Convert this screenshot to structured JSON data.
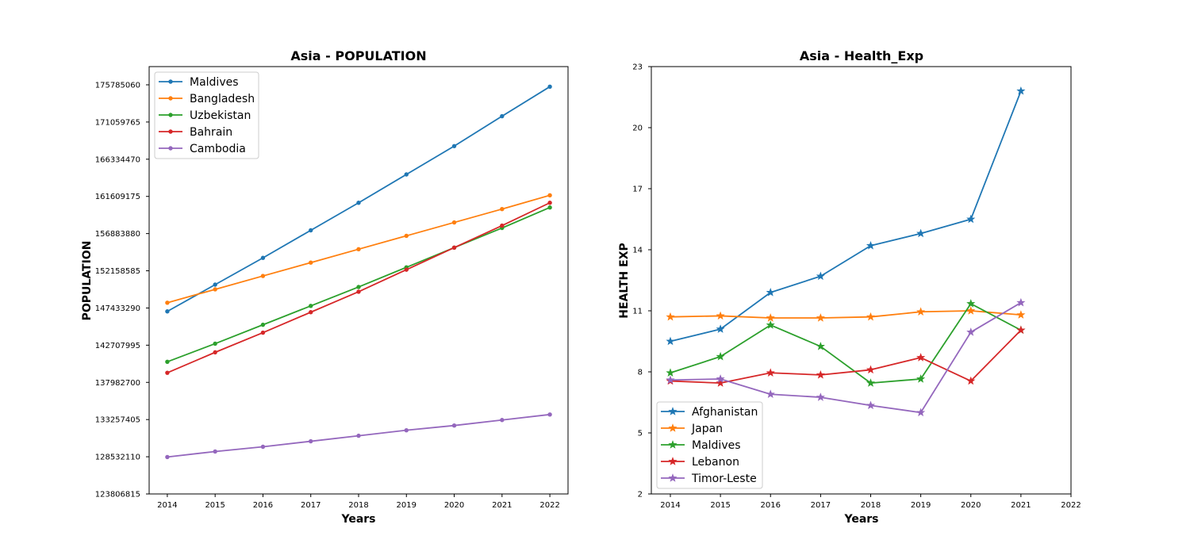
{
  "chart_data": [
    {
      "type": "line",
      "title": "Asia - POPULATION",
      "xlabel": "Years",
      "ylabel": "POPULATION",
      "x": [
        2014,
        2015,
        2016,
        2017,
        2018,
        2019,
        2020,
        2021,
        2022
      ],
      "x_ticks": [
        "2014",
        "2015",
        "2016",
        "2017",
        "2018",
        "2019",
        "2020",
        "2021",
        "2022"
      ],
      "xlim": [
        2013.62,
        2022.38
      ],
      "ylim": [
        123806815,
        178100000
      ],
      "y_ticks": [
        "123806815",
        "128532110",
        "133257405",
        "137982700",
        "142707995",
        "147433290",
        "152158585",
        "156883880",
        "161609175",
        "166334470",
        "171059765",
        "175785060"
      ],
      "y_tick_values": [
        123806815,
        128532110,
        133257405,
        137982700,
        142707995,
        147433290,
        152158585,
        156883880,
        161609175,
        166334470,
        171059765,
        175785060
      ],
      "marker": "circle",
      "grid": false,
      "legend_position": "upper-left",
      "series": [
        {
          "name": "Maldives",
          "color": "#1f77b4",
          "values": [
            147000000,
            150400000,
            153800000,
            157300000,
            160800000,
            164400000,
            168000000,
            171800000,
            175550000
          ]
        },
        {
          "name": "Bangladesh",
          "color": "#ff7f0e",
          "values": [
            148100000,
            149800000,
            151500000,
            153200000,
            154900000,
            156600000,
            158300000,
            160000000,
            161750000
          ]
        },
        {
          "name": "Uzbekistan",
          "color": "#2ca02c",
          "values": [
            140600000,
            142900000,
            145300000,
            147700000,
            150100000,
            152600000,
            155100000,
            157600000,
            160200000
          ]
        },
        {
          "name": "Bahrain",
          "color": "#d62728",
          "values": [
            139200000,
            141800000,
            144300000,
            146900000,
            149500000,
            152300000,
            155100000,
            157900000,
            160800000
          ]
        },
        {
          "name": "Cambodia",
          "color": "#9467bd",
          "values": [
            128500000,
            129200000,
            129800000,
            130500000,
            131200000,
            131900000,
            132500000,
            133200000,
            133900000
          ]
        }
      ]
    },
    {
      "type": "line",
      "title": "Asia - Health_Exp",
      "xlabel": "Years",
      "ylabel": "HEALTH EXP",
      "x": [
        2014,
        2015,
        2016,
        2017,
        2018,
        2019,
        2020,
        2021
      ],
      "x_ticks": [
        "2014",
        "2015",
        "2016",
        "2017",
        "2018",
        "2019",
        "2020",
        "2021",
        "2022"
      ],
      "x_tick_values": [
        2014,
        2015,
        2016,
        2017,
        2018,
        2019,
        2020,
        2021,
        2022
      ],
      "xlim": [
        2013.62,
        2022.0
      ],
      "ylim": [
        2,
        23
      ],
      "y_ticks": [
        "2",
        "5",
        "8",
        "11",
        "14",
        "17",
        "20",
        "23"
      ],
      "y_tick_values": [
        2,
        5,
        8,
        11,
        14,
        17,
        20,
        23
      ],
      "marker": "star",
      "grid": false,
      "legend_position": "lower-left",
      "series": [
        {
          "name": "Afghanistan",
          "color": "#1f77b4",
          "values": [
            9.5,
            10.1,
            11.9,
            12.7,
            14.2,
            14.8,
            15.5,
            21.8
          ]
        },
        {
          "name": "Japan",
          "color": "#ff7f0e",
          "values": [
            10.7,
            10.75,
            10.65,
            10.65,
            10.7,
            10.95,
            11.0,
            10.8
          ]
        },
        {
          "name": "Maldives",
          "color": "#2ca02c",
          "values": [
            7.95,
            8.75,
            10.3,
            9.25,
            7.45,
            7.65,
            11.35,
            10.05
          ]
        },
        {
          "name": "Lebanon",
          "color": "#d62728",
          "values": [
            7.55,
            7.45,
            7.95,
            7.85,
            8.1,
            8.7,
            7.55,
            10.05
          ]
        },
        {
          "name": "Timor-Leste",
          "color": "#9467bd",
          "values": [
            7.6,
            7.65,
            6.9,
            6.75,
            6.35,
            6.0,
            9.95,
            11.4
          ]
        }
      ]
    }
  ]
}
